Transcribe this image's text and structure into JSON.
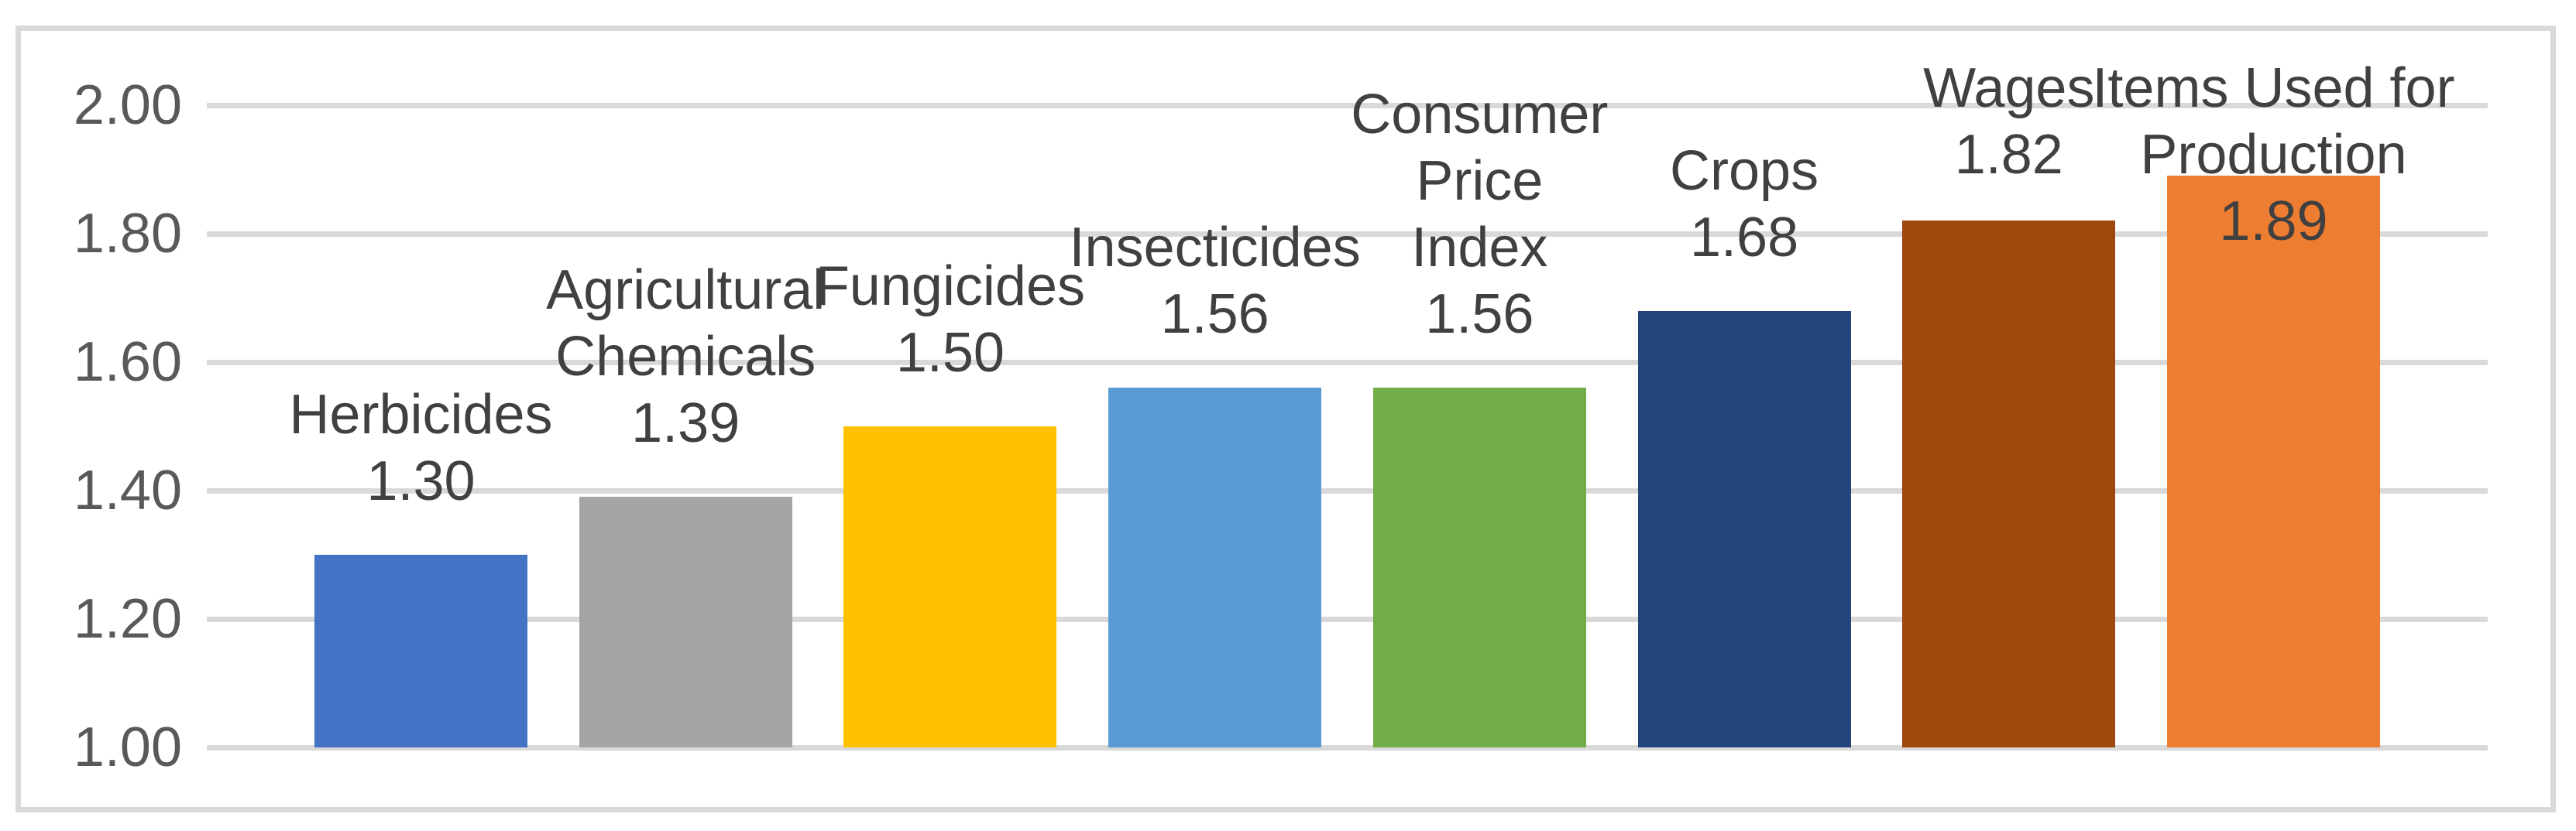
{
  "chart_data": {
    "type": "bar",
    "title": "",
    "xlabel": "",
    "ylabel": "",
    "categories": [
      "Herbicides",
      "Agricultural Chemicals",
      "Fungicides",
      "Insecticides",
      "Consumer Price Index",
      "Crops",
      "Wages",
      "Items Used for Production"
    ],
    "values": [
      1.3,
      1.39,
      1.5,
      1.56,
      1.56,
      1.68,
      1.82,
      1.89
    ],
    "value_labels": [
      "1.30",
      "1.39",
      "1.50",
      "1.56",
      "1.56",
      "1.68",
      "1.82",
      "1.89"
    ],
    "category_label_lines": [
      [
        "Herbicides"
      ],
      [
        "Agricultural",
        "Chemicals"
      ],
      [
        "Fungicides"
      ],
      [
        "Insecticides"
      ],
      [
        "Consumer",
        "Price",
        "Index"
      ],
      [
        "Crops"
      ],
      [
        "Wages"
      ],
      [
        "Items Used for",
        "Production"
      ]
    ],
    "bar_colors": [
      "#4472C4",
      "#A5A5A5",
      "#FFC000",
      "#5B9BD5",
      "#70AD47",
      "#24447C",
      "#9E480E",
      "#ED7D31"
    ],
    "ylim": [
      1.0,
      2.0
    ],
    "ytick_step": 0.2,
    "ytick_labels": [
      "1.00",
      "1.20",
      "1.40",
      "1.60",
      "1.80",
      "2.00"
    ],
    "grid": "horizontal",
    "legend": "none",
    "colors": {
      "gridline": "#D9D9D9",
      "frame_border": "#D9D9D9",
      "axis_text": "#595959",
      "label_text": "#404040",
      "background": "#FFFFFF"
    }
  }
}
